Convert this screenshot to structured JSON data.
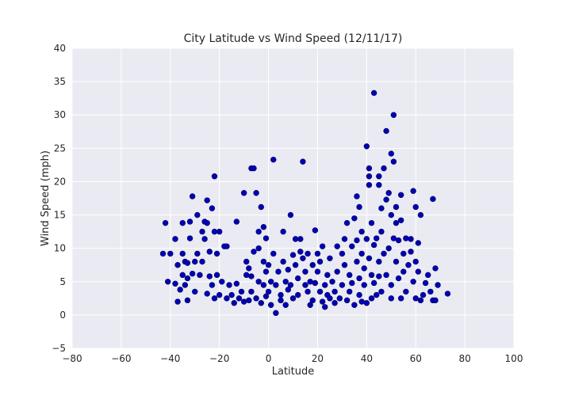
{
  "chart_data": {
    "type": "scatter",
    "title": "City Latitude vs Wind Speed (12/11/17)",
    "xlabel": "Latitude",
    "ylabel": "Wind Speed (mph)",
    "xlim": [
      -80,
      100
    ],
    "ylim": [
      -5,
      40
    ],
    "xticks": [
      -80,
      -60,
      -40,
      -20,
      0,
      20,
      40,
      60,
      80,
      100
    ],
    "yticks": [
      -5,
      0,
      5,
      10,
      15,
      20,
      25,
      30,
      35,
      40
    ],
    "grid": true,
    "legend": "none",
    "background_color": "#eaeaf2",
    "grid_color": "#ffffff",
    "marker_color": "#0000b4",
    "marker_edge_color": "#000060",
    "points": [
      [
        -43,
        9.2
      ],
      [
        -42,
        13.8
      ],
      [
        -41,
        5
      ],
      [
        -40,
        9.2
      ],
      [
        -38,
        11.4
      ],
      [
        -38,
        4.7
      ],
      [
        -37,
        2
      ],
      [
        -37,
        7.5
      ],
      [
        -36,
        3.8
      ],
      [
        -35,
        6
      ],
      [
        -35,
        9.2
      ],
      [
        -35,
        13.8
      ],
      [
        -34,
        4.5
      ],
      [
        -34,
        8
      ],
      [
        -33,
        2.2
      ],
      [
        -33,
        5.5
      ],
      [
        -33,
        7.8
      ],
      [
        -32,
        14
      ],
      [
        -32,
        11.5
      ],
      [
        -31,
        17.8
      ],
      [
        -31,
        6.2
      ],
      [
        -30,
        8
      ],
      [
        -30,
        3.5
      ],
      [
        -29,
        15
      ],
      [
        -29,
        9.2
      ],
      [
        -28,
        6
      ],
      [
        -27,
        12.5
      ],
      [
        -27,
        8
      ],
      [
        -26,
        14
      ],
      [
        -26,
        11.4
      ],
      [
        -25,
        13.8
      ],
      [
        -25,
        17.2
      ],
      [
        -25,
        3.2
      ],
      [
        -24,
        5.8
      ],
      [
        -24,
        9.5
      ],
      [
        -23,
        16
      ],
      [
        -23,
        4.5
      ],
      [
        -22,
        20.8
      ],
      [
        -22,
        12.5
      ],
      [
        -22,
        2.5
      ],
      [
        -21,
        9.2
      ],
      [
        -21,
        6
      ],
      [
        -20,
        12.5
      ],
      [
        -20,
        3
      ],
      [
        -19,
        5
      ],
      [
        -18,
        10.3
      ],
      [
        -17,
        10.3
      ],
      [
        -17,
        2.5
      ],
      [
        -16,
        4.5
      ],
      [
        -15,
        3
      ],
      [
        -14,
        1.8
      ],
      [
        -13,
        14
      ],
      [
        -13,
        4.7
      ],
      [
        -12,
        2.5
      ],
      [
        -11,
        3.5
      ],
      [
        -10,
        2
      ],
      [
        -10,
        18.3
      ],
      [
        -9,
        6
      ],
      [
        -9,
        8
      ],
      [
        -8,
        7
      ],
      [
        -8,
        2.2
      ],
      [
        -7,
        22
      ],
      [
        -7,
        5.8
      ],
      [
        -7,
        3.5
      ],
      [
        -6,
        22
      ],
      [
        -6,
        9.5
      ],
      [
        -5,
        2.5
      ],
      [
        -5,
        18.3
      ],
      [
        -4,
        12.5
      ],
      [
        -4,
        10
      ],
      [
        -4,
        5
      ],
      [
        -3,
        16.2
      ],
      [
        -3,
        1.8
      ],
      [
        -2,
        13.2
      ],
      [
        -2,
        8
      ],
      [
        -2,
        4.5
      ],
      [
        -1,
        11.5
      ],
      [
        -1,
        6.5
      ],
      [
        -1,
        2.8
      ],
      [
        0,
        3.5
      ],
      [
        0,
        7.5
      ],
      [
        1,
        5
      ],
      [
        1,
        1.5
      ],
      [
        2,
        23.3
      ],
      [
        2,
        9.2
      ],
      [
        3,
        0.3
      ],
      [
        3,
        4.5
      ],
      [
        4,
        6.5
      ],
      [
        5,
        3
      ],
      [
        5,
        2.2
      ],
      [
        6,
        12.5
      ],
      [
        6,
        8
      ],
      [
        7,
        5
      ],
      [
        7,
        1.5
      ],
      [
        8,
        3.8
      ],
      [
        8,
        6.8
      ],
      [
        9,
        4.5
      ],
      [
        9,
        15
      ],
      [
        10,
        9
      ],
      [
        10,
        2.5
      ],
      [
        11,
        7.5
      ],
      [
        11,
        11.4
      ],
      [
        12,
        5.5
      ],
      [
        12,
        3
      ],
      [
        13,
        9.5
      ],
      [
        13,
        11.4
      ],
      [
        14,
        23
      ],
      [
        14,
        8.5
      ],
      [
        15,
        6.5
      ],
      [
        15,
        4.5
      ],
      [
        16,
        3.5
      ],
      [
        16,
        9.2
      ],
      [
        17,
        5
      ],
      [
        17,
        1.5
      ],
      [
        18,
        2.2
      ],
      [
        18,
        7.5
      ],
      [
        19,
        12.7
      ],
      [
        19,
        4.8
      ],
      [
        20,
        9.2
      ],
      [
        20,
        6.5
      ],
      [
        21,
        3.5
      ],
      [
        21,
        8
      ],
      [
        22,
        10.3
      ],
      [
        22,
        2
      ],
      [
        23,
        4.5
      ],
      [
        23,
        1.2
      ],
      [
        24,
        6
      ],
      [
        24,
        3
      ],
      [
        25,
        2.5
      ],
      [
        25,
        8.5
      ],
      [
        26,
        5
      ],
      [
        27,
        3.5
      ],
      [
        27,
        1.8
      ],
      [
        28,
        10.3
      ],
      [
        28,
        6.5
      ],
      [
        29,
        2.5
      ],
      [
        30,
        4.5
      ],
      [
        30,
        9.2
      ],
      [
        31,
        11.4
      ],
      [
        31,
        7.5
      ],
      [
        32,
        2.2
      ],
      [
        32,
        13.8
      ],
      [
        33,
        6
      ],
      [
        33,
        3.5
      ],
      [
        34,
        10.3
      ],
      [
        34,
        4.8
      ],
      [
        35,
        14.5
      ],
      [
        35,
        1.5
      ],
      [
        36,
        17.8
      ],
      [
        36,
        8
      ],
      [
        36,
        11.2
      ],
      [
        37,
        16.2
      ],
      [
        37,
        5.5
      ],
      [
        37,
        3
      ],
      [
        38,
        9.2
      ],
      [
        38,
        12.5
      ],
      [
        38,
        2
      ],
      [
        39,
        7
      ],
      [
        39,
        4.5
      ],
      [
        40,
        25.3
      ],
      [
        40,
        11.4
      ],
      [
        40,
        1.8
      ],
      [
        41,
        22
      ],
      [
        41,
        20.8
      ],
      [
        41,
        19.5
      ],
      [
        41,
        8.5
      ],
      [
        42,
        13.8
      ],
      [
        42,
        6
      ],
      [
        42,
        2.5
      ],
      [
        43,
        33.3
      ],
      [
        43,
        10.5
      ],
      [
        43,
        4.8
      ],
      [
        44,
        11.5
      ],
      [
        44,
        3
      ],
      [
        45,
        20.8
      ],
      [
        45,
        19.5
      ],
      [
        45,
        8
      ],
      [
        45,
        5.8
      ],
      [
        46,
        16
      ],
      [
        46,
        12.5
      ],
      [
        46,
        3.5
      ],
      [
        47,
        22
      ],
      [
        47,
        9.2
      ],
      [
        48,
        27.6
      ],
      [
        48,
        17.3
      ],
      [
        48,
        6
      ],
      [
        49,
        18.3
      ],
      [
        49,
        10
      ],
      [
        50,
        24.2
      ],
      [
        50,
        15
      ],
      [
        50,
        4.5
      ],
      [
        50,
        2.5
      ],
      [
        51,
        30
      ],
      [
        51,
        23
      ],
      [
        51,
        11.5
      ],
      [
        52,
        16.2
      ],
      [
        52,
        8
      ],
      [
        52,
        13.8
      ],
      [
        53,
        11.2
      ],
      [
        53,
        5.5
      ],
      [
        54,
        18
      ],
      [
        54,
        14.2
      ],
      [
        54,
        2.5
      ],
      [
        55,
        9.2
      ],
      [
        55,
        6.5
      ],
      [
        56,
        3.5
      ],
      [
        56,
        11.5
      ],
      [
        57,
        7.5
      ],
      [
        58,
        11.4
      ],
      [
        58,
        9.5
      ],
      [
        59,
        18.6
      ],
      [
        59,
        5
      ],
      [
        60,
        16.2
      ],
      [
        60,
        8
      ],
      [
        60,
        2.5
      ],
      [
        61,
        10.8
      ],
      [
        61,
        6.5
      ],
      [
        62,
        15
      ],
      [
        62,
        2.2
      ],
      [
        63,
        3
      ],
      [
        64,
        4.8
      ],
      [
        65,
        6
      ],
      [
        66,
        3.5
      ],
      [
        67,
        17.4
      ],
      [
        67,
        2.2
      ],
      [
        68,
        7
      ],
      [
        68,
        2.2
      ],
      [
        69,
        4.5
      ],
      [
        73,
        3.2
      ]
    ]
  }
}
